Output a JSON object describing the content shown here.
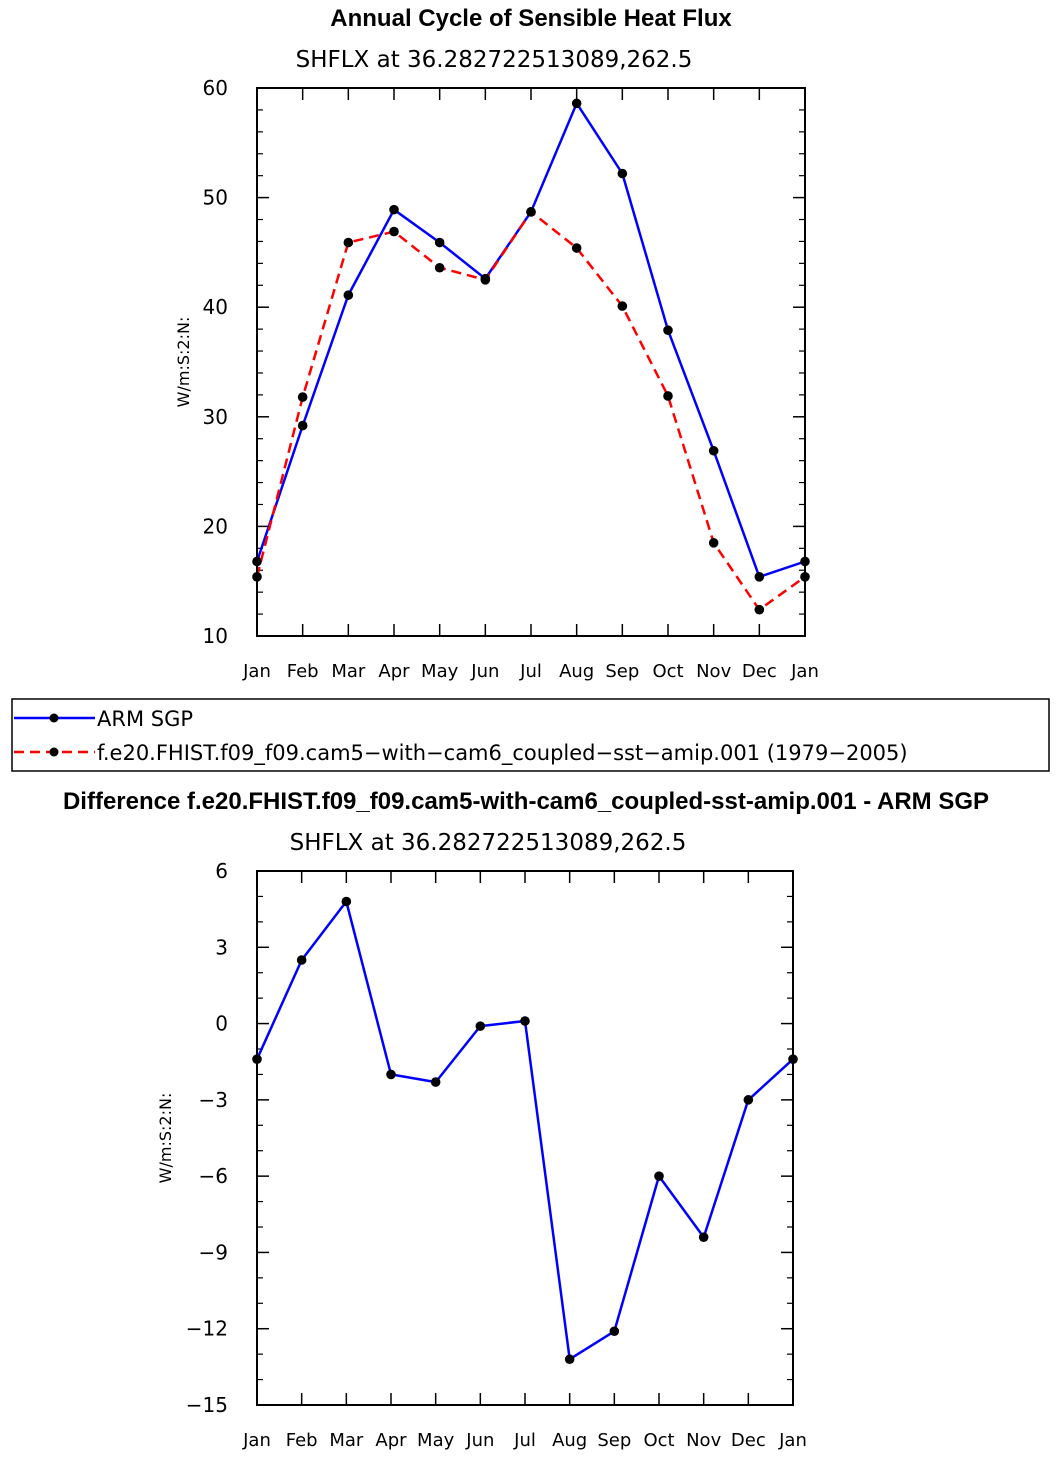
{
  "chart_data": [
    {
      "type": "line",
      "title": "Annual Cycle of Sensible Heat Flux",
      "subtitle": "SHFLX at 36.282722513089,262.5",
      "ylabel": "W/m:S:2:N:",
      "xlabel": "",
      "categories": [
        "Jan",
        "Feb",
        "Mar",
        "Apr",
        "May",
        "Jun",
        "Jul",
        "Aug",
        "Sep",
        "Oct",
        "Nov",
        "Dec",
        "Jan"
      ],
      "ylim": [
        10,
        60
      ],
      "yticks": [
        "10",
        "20",
        "30",
        "40",
        "50",
        "60"
      ],
      "series": [
        {
          "name": "ARM SGP",
          "color": "#0000ff",
          "style": "solid",
          "values": [
            16.8,
            29.2,
            41.1,
            48.9,
            45.9,
            42.6,
            48.7,
            58.6,
            52.2,
            37.9,
            26.9,
            15.4,
            16.8
          ]
        },
        {
          "name": "f.e20.FHIST.f09_f09.cam5-with-cam6_coupled-sst-amip.001 (1979-2005)",
          "color": "#ff0000",
          "style": "dashed",
          "values": [
            15.4,
            31.8,
            45.9,
            46.9,
            43.6,
            42.5,
            48.7,
            45.4,
            40.1,
            31.9,
            18.5,
            12.4,
            15.4
          ]
        }
      ],
      "legend": {
        "placement": "below",
        "entries": [
          "ARM SGP",
          "f.e20.FHIST.f09_f09.cam5−with−cam6_coupled−sst−amip.001 (1979−2005)"
        ]
      }
    },
    {
      "type": "line",
      "title": "Difference f.e20.FHIST.f09_f09.cam5-with-cam6_coupled-sst-amip.001 - ARM SGP",
      "subtitle": "SHFLX at 36.282722513089,262.5",
      "ylabel": "W/m:S:2:N:",
      "xlabel": "",
      "categories": [
        "Jan",
        "Feb",
        "Mar",
        "Apr",
        "May",
        "Jun",
        "Jul",
        "Aug",
        "Sep",
        "Oct",
        "Nov",
        "Dec",
        "Jan"
      ],
      "ylim": [
        -15,
        6
      ],
      "yticks": [
        "−15",
        "−12",
        "−9",
        "−6",
        "−3",
        "0",
        "3",
        "6"
      ],
      "series": [
        {
          "name": "Difference",
          "color": "#0000ff",
          "style": "solid",
          "values": [
            -1.4,
            2.5,
            4.8,
            -2.0,
            -2.3,
            -0.1,
            0.1,
            -13.2,
            -12.1,
            -6.0,
            -8.4,
            -3.0,
            -1.4
          ]
        }
      ]
    }
  ]
}
